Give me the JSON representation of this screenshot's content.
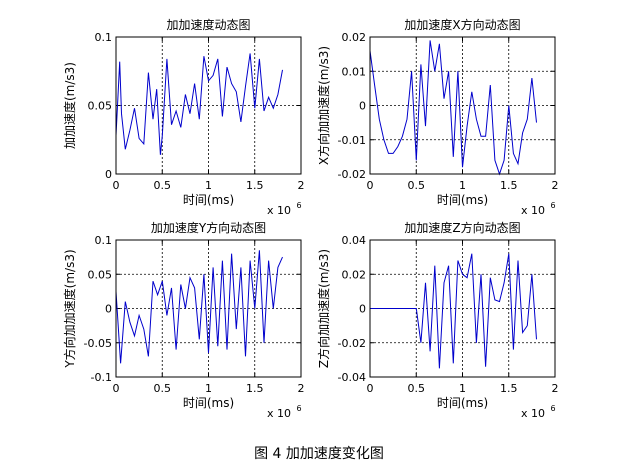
{
  "figure_caption": "图 4  加加速度变化图",
  "chart_data": [
    {
      "type": "line",
      "title": "加加速度动态图",
      "xlabel": "时间(ms)",
      "ylabel": "加加速度(m/s3)",
      "x_exponent_label": "x 10",
      "x_exponent_power": "6",
      "xlim": [
        0,
        2
      ],
      "ylim": [
        0,
        0.1
      ],
      "xticks": [
        "0",
        "0.5",
        "1",
        "1.5",
        "2"
      ],
      "yticks": [
        "0",
        "0.05",
        "0.1"
      ],
      "grid": "dotted",
      "line_color": "#0000cc",
      "x": [
        0,
        0.04,
        0.06,
        0.1,
        0.15,
        0.2,
        0.25,
        0.3,
        0.35,
        0.4,
        0.44,
        0.48,
        0.5,
        0.55,
        0.6,
        0.65,
        0.7,
        0.75,
        0.8,
        0.85,
        0.9,
        0.95,
        1.0,
        1.05,
        1.1,
        1.15,
        1.2,
        1.25,
        1.3,
        1.35,
        1.4,
        1.45,
        1.5,
        1.55,
        1.6,
        1.65,
        1.7,
        1.75,
        1.8
      ],
      "series": [
        {
          "values": [
            0.028,
            0.082,
            0.044,
            0.018,
            0.032,
            0.048,
            0.026,
            0.022,
            0.074,
            0.04,
            0.062,
            0.014,
            0.028,
            0.084,
            0.036,
            0.046,
            0.034,
            0.058,
            0.044,
            0.066,
            0.04,
            0.086,
            0.068,
            0.072,
            0.084,
            0.042,
            0.078,
            0.066,
            0.06,
            0.038,
            0.064,
            0.088,
            0.048,
            0.084,
            0.046,
            0.056,
            0.048,
            0.058,
            0.076
          ]
        }
      ]
    },
    {
      "type": "line",
      "title": "加加速度X方向动态图",
      "xlabel": "时间(ms)",
      "ylabel": "X方向加加速度(m/s3)",
      "x_exponent_label": "x 10",
      "x_exponent_power": "6",
      "xlim": [
        0,
        2
      ],
      "ylim": [
        -0.02,
        0.02
      ],
      "xticks": [
        "0",
        "0.5",
        "1",
        "1.5",
        "2"
      ],
      "yticks": [
        "-0.02",
        "-0.01",
        "0",
        "0.01",
        "0.02"
      ],
      "grid": "dotted",
      "line_color": "#0000cc",
      "x": [
        0,
        0.05,
        0.1,
        0.15,
        0.2,
        0.25,
        0.3,
        0.35,
        0.4,
        0.45,
        0.5,
        0.55,
        0.6,
        0.65,
        0.7,
        0.75,
        0.8,
        0.85,
        0.9,
        0.95,
        1.0,
        1.05,
        1.1,
        1.15,
        1.2,
        1.25,
        1.3,
        1.35,
        1.4,
        1.45,
        1.5,
        1.55,
        1.6,
        1.65,
        1.7,
        1.75,
        1.8
      ],
      "series": [
        {
          "values": [
            0.016,
            0.006,
            -0.004,
            -0.01,
            -0.014,
            -0.014,
            -0.012,
            -0.009,
            -0.004,
            0.01,
            -0.016,
            0.012,
            -0.006,
            0.019,
            0.01,
            0.018,
            0.002,
            0.01,
            -0.015,
            0.01,
            -0.018,
            -0.006,
            0.004,
            -0.004,
            -0.009,
            -0.009,
            0.006,
            -0.016,
            -0.02,
            -0.016,
            0,
            -0.014,
            -0.017,
            -0.008,
            -0.004,
            0.008,
            -0.005
          ]
        }
      ]
    },
    {
      "type": "line",
      "title": "加加速度Y方向动态图",
      "xlabel": "时间(ms)",
      "ylabel": "Y方向加加速度(m/s3)",
      "x_exponent_label": "x 10",
      "x_exponent_power": "6",
      "xlim": [
        0,
        2
      ],
      "ylim": [
        -0.1,
        0.1
      ],
      "xticks": [
        "0",
        "0.5",
        "1",
        "1.5",
        "2"
      ],
      "yticks": [
        "-0.1",
        "-0.05",
        "0",
        "0.05",
        "0.1"
      ],
      "grid": "dotted",
      "line_color": "#0000cc",
      "x": [
        0,
        0.05,
        0.1,
        0.15,
        0.2,
        0.25,
        0.3,
        0.35,
        0.4,
        0.45,
        0.5,
        0.55,
        0.6,
        0.65,
        0.7,
        0.75,
        0.8,
        0.85,
        0.9,
        0.95,
        1.0,
        1.05,
        1.1,
        1.15,
        1.2,
        1.25,
        1.3,
        1.35,
        1.4,
        1.45,
        1.5,
        1.55,
        1.6,
        1.65,
        1.7,
        1.75,
        1.8
      ],
      "series": [
        {
          "values": [
            0.025,
            -0.08,
            0.01,
            -0.02,
            -0.04,
            -0.01,
            -0.03,
            -0.07,
            0.04,
            0.02,
            0.04,
            -0.01,
            0.03,
            -0.06,
            0.035,
            0.0,
            0.045,
            0.03,
            -0.045,
            0.05,
            -0.065,
            0.06,
            -0.055,
            0.07,
            -0.06,
            0.08,
            -0.03,
            0.06,
            -0.07,
            0.07,
            0.0,
            0.085,
            -0.05,
            0.07,
            0.0,
            0.06,
            0.075
          ]
        }
      ]
    },
    {
      "type": "line",
      "title": "加加速度Z方向动态图",
      "xlabel": "时间(ms)",
      "ylabel": "Z方向加加速度(m/s3)",
      "x_exponent_label": "x 10",
      "x_exponent_power": "6",
      "xlim": [
        0,
        2
      ],
      "ylim": [
        -0.04,
        0.04
      ],
      "xticks": [
        "0",
        "0.5",
        "1",
        "1.5",
        "2"
      ],
      "yticks": [
        "-0.04",
        "-0.02",
        "0",
        "0.02",
        "0.04"
      ],
      "grid": "dotted",
      "line_color": "#0000cc",
      "x": [
        0,
        0.2,
        0.4,
        0.5,
        0.55,
        0.6,
        0.65,
        0.7,
        0.75,
        0.8,
        0.85,
        0.9,
        0.95,
        1.0,
        1.05,
        1.1,
        1.15,
        1.2,
        1.25,
        1.3,
        1.35,
        1.4,
        1.45,
        1.5,
        1.55,
        1.6,
        1.65,
        1.7,
        1.75,
        1.8
      ],
      "series": [
        {
          "values": [
            0,
            0,
            0,
            0,
            -0.02,
            0.015,
            -0.025,
            0.025,
            -0.035,
            0.015,
            0.025,
            -0.032,
            0.028,
            0.02,
            0.018,
            0.032,
            -0.02,
            0.02,
            -0.034,
            0.018,
            0.005,
            0.004,
            0.015,
            0.032,
            -0.024,
            0.028,
            -0.014,
            -0.01,
            0.02,
            -0.018
          ]
        }
      ]
    }
  ]
}
